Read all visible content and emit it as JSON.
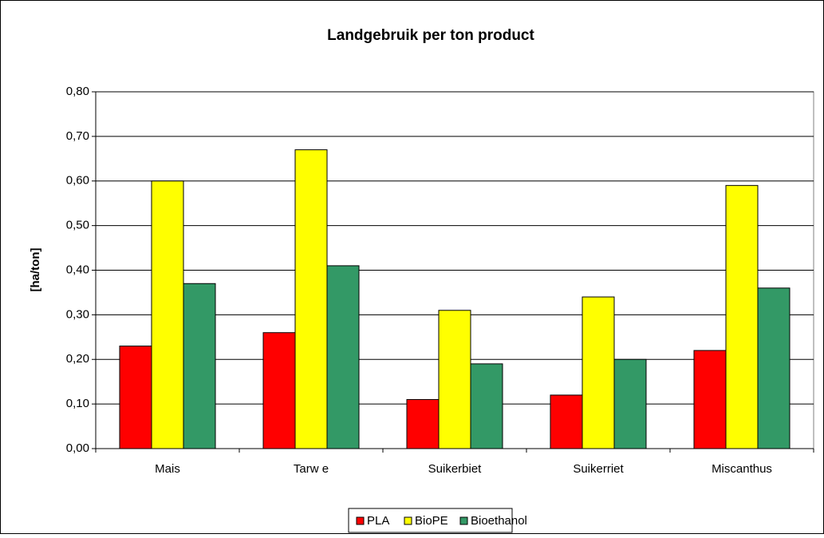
{
  "chart_data": {
    "type": "bar",
    "title": "Landgebruik per ton product",
    "ylabel": "[ha/ton]",
    "categories": [
      "Mais",
      "Tarw e",
      "Suikerbiet",
      "Suikerriet",
      "Miscanthus"
    ],
    "series": [
      {
        "name": "PLA",
        "color": "#ff0000",
        "values": [
          0.23,
          0.26,
          0.11,
          0.12,
          0.22
        ]
      },
      {
        "name": "BioPE",
        "color": "#ffff00",
        "values": [
          0.6,
          0.67,
          0.31,
          0.34,
          0.59
        ]
      },
      {
        "name": "Bioethanol",
        "color": "#339966",
        "values": [
          0.37,
          0.41,
          0.19,
          0.2,
          0.36
        ]
      }
    ],
    "ylim": [
      0,
      0.8
    ],
    "yticks": [
      {
        "value": 0,
        "label": "0,00"
      },
      {
        "value": 0.1,
        "label": "0,10"
      },
      {
        "value": 0.2,
        "label": "0,20"
      },
      {
        "value": 0.3,
        "label": "0,30"
      },
      {
        "value": 0.4,
        "label": "0,40"
      },
      {
        "value": 0.5,
        "label": "0,50"
      },
      {
        "value": 0.6,
        "label": "0,60"
      },
      {
        "value": 0.7,
        "label": "0,70"
      },
      {
        "value": 0.8,
        "label": "0,80"
      }
    ],
    "grid": true,
    "legend": "bottom"
  }
}
